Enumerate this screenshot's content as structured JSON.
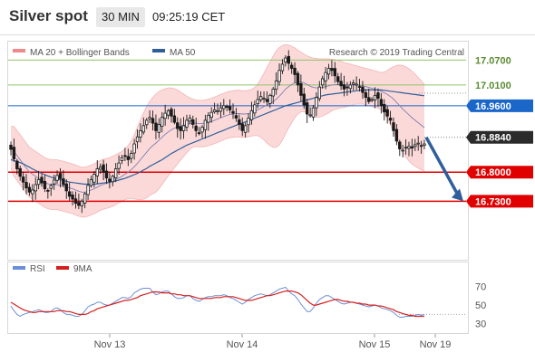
{
  "header": {
    "title": "Silver spot",
    "timeframe": "30 MIN",
    "time": "09:25:19 CET"
  },
  "legend": {
    "bb_label": "MA 20 + Bollinger Bands",
    "ma50_label": "MA 50",
    "rsi_label": "RSI",
    "rsi_ma_label": "9MA",
    "copyright": "Research © 2019 Trading Central",
    "colors": {
      "bb": "#f08a8a",
      "ma50": "#2f5f9a",
      "rsi": "#6b8fd6",
      "rsi_ma": "#d62020"
    }
  },
  "chart_data": [
    {
      "type": "candlestick",
      "title": "Silver spot",
      "ylim": [
        16.6,
        17.11
      ],
      "levels": [
        {
          "value": 17.07,
          "label": "17.0700",
          "color": "#8fc46a",
          "style": "outline"
        },
        {
          "value": 17.01,
          "label": "17.0100",
          "color": "#8fc46a",
          "style": "outline"
        },
        {
          "value": 16.96,
          "label": "16.9600",
          "color": "#1a66c9",
          "style": "filled"
        },
        {
          "value": 16.884,
          "label": "16.8840",
          "color": "#333333",
          "style": "filled-dark"
        },
        {
          "value": 16.8,
          "label": "16.8000",
          "color": "#e00000",
          "style": "filled"
        },
        {
          "value": 16.73,
          "label": "16.7300",
          "color": "#e00000",
          "style": "filled"
        }
      ],
      "closes": [
        16.855,
        16.832,
        16.808,
        16.79,
        16.776,
        16.762,
        16.752,
        16.757,
        16.77,
        16.782,
        16.774,
        16.76,
        16.755,
        16.768,
        16.781,
        16.792,
        16.785,
        16.77,
        16.755,
        16.742,
        16.735,
        16.725,
        16.72,
        16.73,
        16.748,
        16.768,
        16.782,
        16.795,
        16.808,
        16.812,
        16.8,
        16.786,
        16.778,
        16.79,
        16.808,
        16.822,
        16.835,
        16.838,
        16.83,
        16.845,
        16.868,
        16.885,
        16.9,
        16.912,
        16.925,
        16.932,
        16.918,
        16.9,
        16.915,
        16.932,
        16.942,
        16.948,
        16.935,
        16.92,
        16.905,
        16.9,
        16.912,
        16.925,
        16.93,
        16.915,
        16.9,
        16.893,
        16.908,
        16.925,
        16.937,
        16.944,
        16.95,
        16.948,
        16.955,
        16.96,
        16.958,
        16.95,
        16.942,
        16.93,
        16.915,
        16.9,
        16.912,
        16.93,
        16.948,
        16.962,
        16.975,
        16.982,
        16.978,
        16.97,
        16.985,
        17.0,
        17.02,
        17.045,
        17.06,
        17.075,
        17.062,
        17.05,
        17.035,
        17.01,
        16.985,
        16.962,
        16.94,
        16.938,
        16.955,
        16.98,
        17.005,
        17.025,
        17.04,
        17.05,
        17.045,
        17.032,
        17.018,
        17.008,
        17.0,
        17.005,
        17.01,
        17.015,
        17.012,
        17.005,
        16.992,
        16.98,
        16.97,
        16.975,
        16.985,
        16.978,
        16.96,
        16.945,
        16.935,
        16.925,
        16.9,
        16.875,
        16.856,
        16.853,
        16.86,
        16.862,
        16.858,
        16.866,
        16.87,
        16.864,
        16.868
      ],
      "ma20": [
        16.86,
        16.85,
        16.84,
        16.83,
        16.82,
        16.81,
        16.8,
        16.795,
        16.79,
        16.785,
        16.78,
        16.775,
        16.772,
        16.77,
        16.77,
        16.77,
        16.768,
        16.766,
        16.764,
        16.762,
        16.76,
        16.757,
        16.754,
        16.752,
        16.752,
        16.754,
        16.757,
        16.76,
        16.764,
        16.768,
        16.771,
        16.773,
        16.775,
        16.778,
        16.782,
        16.786,
        16.79,
        16.795,
        16.8,
        16.806,
        16.813,
        16.821,
        16.83,
        16.839,
        16.848,
        16.857,
        16.864,
        16.87,
        16.877,
        16.884,
        16.891,
        16.897,
        16.902,
        16.906,
        16.909,
        16.911,
        16.913,
        16.915,
        16.917,
        16.918,
        16.918,
        16.917,
        16.917,
        16.918,
        16.92,
        16.922,
        16.925,
        16.928,
        16.931,
        16.934,
        16.937,
        16.939,
        16.94,
        16.941,
        16.941,
        16.94,
        16.94,
        16.941,
        16.943,
        16.946,
        16.95,
        16.954,
        16.958,
        16.961,
        16.965,
        16.97,
        16.976,
        16.983,
        16.991,
        17.0,
        17.006,
        17.011,
        17.015,
        17.017,
        17.017,
        17.015,
        17.011,
        17.007,
        17.004,
        17.003,
        17.003,
        17.004,
        17.006,
        17.008,
        17.01,
        17.011,
        17.011,
        17.011,
        17.01,
        17.01,
        17.01,
        17.01,
        17.01,
        17.009,
        17.008,
        17.006,
        17.004,
        17.002,
        17.0,
        16.998,
        16.995,
        16.991,
        16.987,
        16.982,
        16.976,
        16.968,
        16.96,
        16.952,
        16.945,
        16.938,
        16.931,
        16.925,
        16.919,
        16.913,
        16.907
      ],
      "bb_upper": [
        16.91,
        16.91,
        16.9,
        16.89,
        16.88,
        16.87,
        16.86,
        16.855,
        16.85,
        16.845,
        16.84,
        16.835,
        16.832,
        16.83,
        16.83,
        16.83,
        16.828,
        16.826,
        16.824,
        16.822,
        16.82,
        16.817,
        16.814,
        16.812,
        16.812,
        16.814,
        16.817,
        16.82,
        16.824,
        16.828,
        16.831,
        16.833,
        16.835,
        16.838,
        16.842,
        16.846,
        16.85,
        16.856,
        16.864,
        16.875,
        16.89,
        16.908,
        16.926,
        16.943,
        16.958,
        16.97,
        16.98,
        16.988,
        16.994,
        16.998,
        17.001,
        17.003,
        17.003,
        17.001,
        16.998,
        16.993,
        16.988,
        16.983,
        16.979,
        16.976,
        16.974,
        16.973,
        16.973,
        16.974,
        16.976,
        16.978,
        16.981,
        16.984,
        16.987,
        16.99,
        16.993,
        16.995,
        16.996,
        16.997,
        16.997,
        16.996,
        16.996,
        16.997,
        16.999,
        17.004,
        17.012,
        17.024,
        17.038,
        17.052,
        17.066,
        17.08,
        17.092,
        17.1,
        17.105,
        17.107,
        17.106,
        17.103,
        17.099,
        17.094,
        17.089,
        17.084,
        17.08,
        17.077,
        17.075,
        17.074,
        17.073,
        17.073,
        17.073,
        17.073,
        17.072,
        17.071,
        17.069,
        17.067,
        17.064,
        17.062,
        17.06,
        17.058,
        17.056,
        17.054,
        17.052,
        17.05,
        17.048,
        17.046,
        17.044,
        17.042,
        17.04,
        17.041,
        17.045,
        17.05,
        17.054,
        17.057,
        17.058,
        17.057,
        17.054,
        17.049,
        17.043,
        17.036,
        17.028,
        17.02,
        17.011
      ],
      "bb_lower": [
        16.81,
        16.79,
        16.78,
        16.77,
        16.76,
        16.75,
        16.74,
        16.735,
        16.73,
        16.725,
        16.72,
        16.715,
        16.712,
        16.71,
        16.71,
        16.71,
        16.708,
        16.706,
        16.704,
        16.702,
        16.7,
        16.697,
        16.694,
        16.692,
        16.692,
        16.694,
        16.697,
        16.7,
        16.704,
        16.708,
        16.711,
        16.713,
        16.715,
        16.718,
        16.722,
        16.726,
        16.73,
        16.734,
        16.736,
        16.737,
        16.736,
        16.734,
        16.734,
        16.735,
        16.738,
        16.744,
        16.748,
        16.752,
        16.76,
        16.77,
        16.781,
        16.791,
        16.801,
        16.811,
        16.82,
        16.829,
        16.838,
        16.847,
        16.855,
        16.86,
        16.862,
        16.861,
        16.861,
        16.862,
        16.864,
        16.866,
        16.869,
        16.872,
        16.875,
        16.878,
        16.881,
        16.883,
        16.884,
        16.885,
        16.885,
        16.884,
        16.884,
        16.885,
        16.887,
        16.888,
        16.888,
        16.884,
        16.878,
        16.87,
        16.864,
        16.86,
        16.86,
        16.866,
        16.877,
        16.893,
        16.906,
        16.919,
        16.931,
        16.94,
        16.945,
        16.946,
        16.942,
        16.937,
        16.933,
        16.932,
        16.933,
        16.935,
        16.939,
        16.943,
        16.948,
        16.951,
        16.953,
        16.955,
        16.956,
        16.958,
        16.96,
        16.962,
        16.964,
        16.964,
        16.964,
        16.962,
        16.96,
        16.958,
        16.956,
        16.954,
        16.95,
        16.941,
        16.929,
        16.914,
        16.898,
        16.879,
        16.862,
        16.847,
        16.836,
        16.827,
        16.819,
        16.814,
        16.81,
        16.806,
        16.803
      ],
      "ma50": [
        16.83,
        16.828,
        16.826,
        16.823,
        16.82,
        16.816,
        16.812,
        16.808,
        16.804,
        16.8,
        16.797,
        16.794,
        16.791,
        16.788,
        16.786,
        16.784,
        16.782,
        16.78,
        16.778,
        16.776,
        16.775,
        16.774,
        16.773,
        16.772,
        16.771,
        16.771,
        16.771,
        16.771,
        16.772,
        16.773,
        16.774,
        16.775,
        16.776,
        16.777,
        16.779,
        16.781,
        16.783,
        16.785,
        16.788,
        16.791,
        16.794,
        16.797,
        16.801,
        16.805,
        16.809,
        16.814,
        16.818,
        16.822,
        16.826,
        16.83,
        16.835,
        16.84,
        16.845,
        16.849,
        16.853,
        16.857,
        16.861,
        16.865,
        16.868,
        16.871,
        16.874,
        16.877,
        16.88,
        16.883,
        16.886,
        16.889,
        16.892,
        16.895,
        16.898,
        16.901,
        16.904,
        16.907,
        16.91,
        16.913,
        16.916,
        16.918,
        16.921,
        16.924,
        16.927,
        16.93,
        16.933,
        16.936,
        16.939,
        16.942,
        16.945,
        16.948,
        16.951,
        16.954,
        16.957,
        16.96,
        16.962,
        16.964,
        16.966,
        16.968,
        16.97,
        16.972,
        16.974,
        16.976,
        16.978,
        16.98,
        16.982,
        16.984,
        16.986,
        16.987,
        16.988,
        16.989,
        16.99,
        16.991,
        16.992,
        16.993,
        16.994,
        16.995,
        16.996,
        16.997,
        16.998,
        16.998,
        16.998,
        16.998,
        16.998,
        16.998,
        16.998,
        16.997,
        16.996,
        16.995,
        16.994,
        16.993,
        16.992,
        16.991,
        16.99,
        16.989,
        16.988,
        16.987,
        16.986,
        16.985,
        16.984
      ],
      "forecast": {
        "from": 16.884,
        "to": 16.73
      }
    },
    {
      "type": "line",
      "title": "RSI",
      "ylim": [
        22,
        82
      ],
      "yticks": [
        70,
        50,
        30
      ],
      "xtick_labels": [
        "Nov 13",
        "Nov 14",
        "Nov 15",
        "Nov 19"
      ],
      "dotted_level": 40,
      "rsi": [
        49,
        44,
        40,
        38,
        40,
        41,
        42,
        43,
        44,
        45,
        44,
        42,
        42,
        43,
        46,
        47,
        45,
        42,
        40,
        40,
        39,
        38,
        38,
        40,
        44,
        48,
        50,
        51,
        53,
        53,
        51,
        50,
        50,
        52,
        54,
        56,
        58,
        58,
        57,
        59,
        63,
        65,
        67,
        68,
        68,
        68,
        64,
        61,
        62,
        64,
        65,
        65,
        62,
        59,
        57,
        57,
        58,
        60,
        60,
        57,
        55,
        54,
        56,
        58,
        59,
        59,
        60,
        60,
        60,
        61,
        60,
        58,
        57,
        55,
        53,
        51,
        53,
        56,
        58,
        60,
        61,
        62,
        61,
        60,
        61,
        63,
        65,
        67,
        68,
        69,
        65,
        62,
        60,
        56,
        51,
        47,
        43,
        43,
        47,
        52,
        56,
        58,
        60,
        60,
        58,
        56,
        54,
        52,
        51,
        52,
        53,
        53,
        52,
        51,
        50,
        49,
        48,
        49,
        50,
        49,
        47,
        46,
        45,
        44,
        42,
        39,
        37,
        37,
        38,
        38,
        38,
        39,
        40,
        39,
        40
      ],
      "ma9": [
        53,
        51,
        49,
        47,
        45,
        44,
        43,
        42,
        42,
        43,
        43,
        43,
        43,
        43,
        43,
        44,
        44,
        44,
        43,
        43,
        42,
        41,
        40,
        40,
        40,
        41,
        43,
        44,
        46,
        47,
        48,
        49,
        50,
        51,
        52,
        53,
        54,
        55,
        55,
        56,
        57,
        58,
        60,
        61,
        62,
        63,
        64,
        64,
        64,
        63,
        63,
        63,
        62,
        62,
        61,
        61,
        60,
        60,
        60,
        59,
        58,
        57,
        57,
        57,
        57,
        57,
        58,
        58,
        58,
        59,
        59,
        59,
        59,
        58,
        57,
        56,
        55,
        55,
        55,
        56,
        57,
        58,
        59,
        60,
        60,
        61,
        62,
        63,
        64,
        65,
        65,
        65,
        64,
        63,
        61,
        58,
        55,
        52,
        50,
        50,
        51,
        52,
        53,
        54,
        55,
        56,
        56,
        55,
        54,
        54,
        53,
        53,
        52,
        52,
        51,
        51,
        50,
        50,
        50,
        49,
        49,
        48,
        47,
        46,
        45,
        43,
        42,
        41,
        40,
        39,
        39,
        38,
        38,
        38,
        38
      ]
    }
  ]
}
